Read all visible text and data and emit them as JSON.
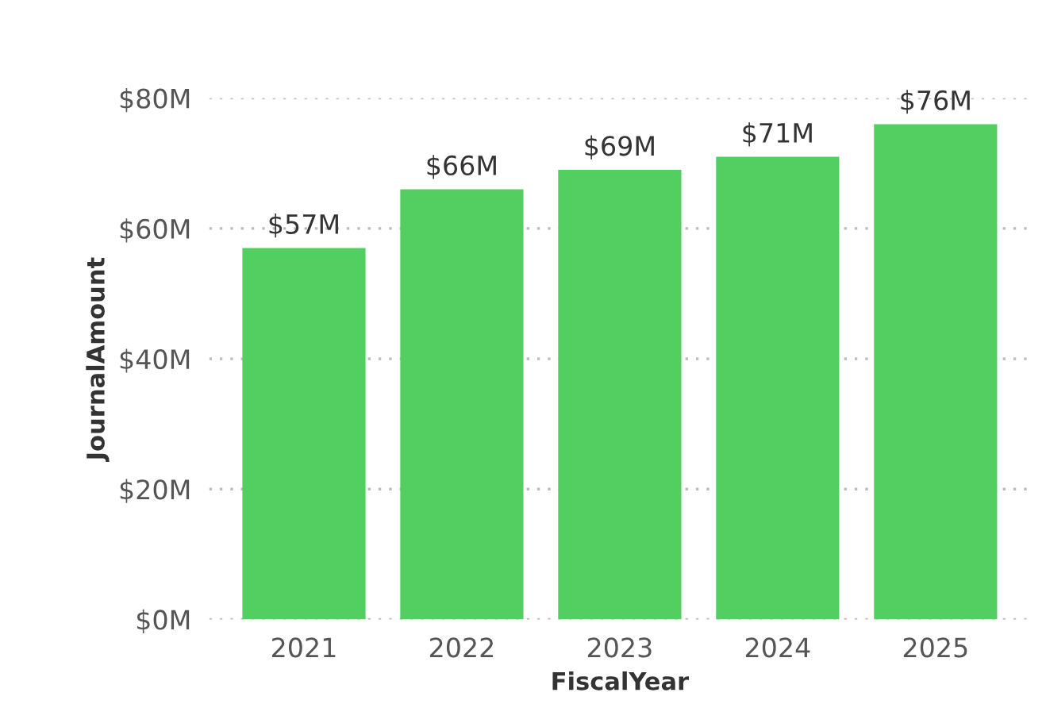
{
  "chart_data": {
    "type": "bar",
    "xlabel": "FiscalYear",
    "ylabel": "JournalAmount",
    "categories": [
      "2021",
      "2022",
      "2023",
      "2024",
      "2025"
    ],
    "values": [
      57,
      66,
      69,
      71,
      76
    ],
    "value_labels": [
      "$57M",
      "$66M",
      "$69M",
      "$71M",
      "$76M"
    ],
    "color": "#52cf60",
    "ylim": [
      0,
      80
    ],
    "yticks": [
      {
        "value": 0,
        "label": "$0M"
      },
      {
        "value": 20,
        "label": "$20M"
      },
      {
        "value": 40,
        "label": "$40M"
      },
      {
        "value": 60,
        "label": "$60M"
      },
      {
        "value": 80,
        "label": "$80M"
      }
    ],
    "grid": "y"
  }
}
